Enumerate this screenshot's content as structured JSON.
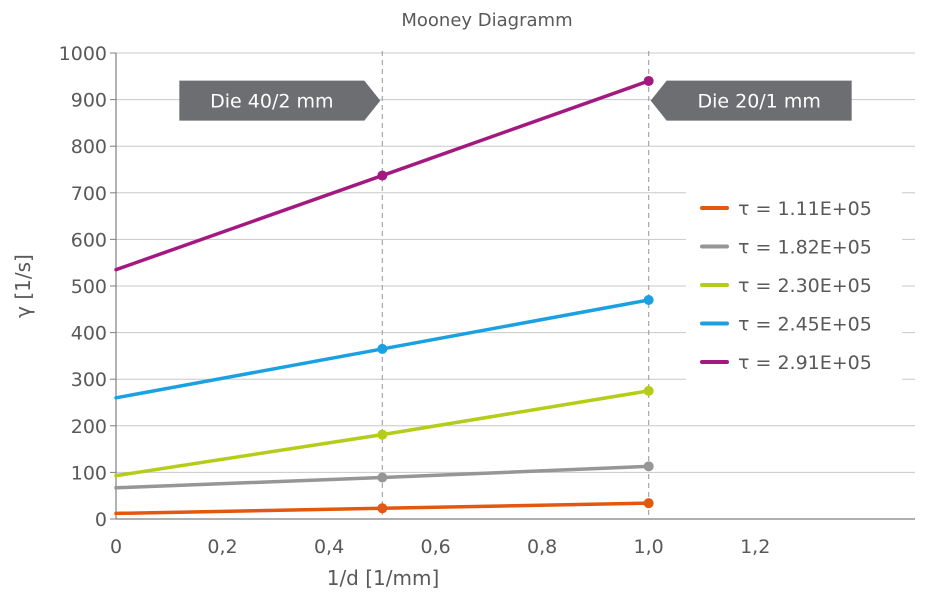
{
  "chart_data": {
    "type": "line",
    "title": "Mooney Diagramm",
    "xlabel": "1/d [1/mm]",
    "ylabel": "γ [1/s]",
    "xlim": [
      0,
      1.5
    ],
    "ylim": [
      0,
      1000
    ],
    "x_ticks": [
      "0",
      "0,2",
      "0,4",
      "0,6",
      "0,8",
      "1,0",
      "1,2"
    ],
    "x_tick_values": [
      0,
      0.2,
      0.4,
      0.6,
      0.8,
      1.0,
      1.2
    ],
    "y_ticks": [
      "0",
      "100",
      "200",
      "300",
      "400",
      "500",
      "600",
      "700",
      "800",
      "900",
      "1000"
    ],
    "y_tick_values": [
      0,
      100,
      200,
      300,
      400,
      500,
      600,
      700,
      800,
      900,
      1000
    ],
    "grid": "horizontal",
    "legend_position": "right",
    "series": [
      {
        "name": "τ = 1.11E+05",
        "color": "#e4570f",
        "x": [
          0,
          0.5,
          1.0
        ],
        "y": [
          12,
          23,
          34
        ]
      },
      {
        "name": "τ = 1.82E+05",
        "color": "#969696",
        "x": [
          0,
          0.5,
          1.0
        ],
        "y": [
          67,
          89,
          113
        ]
      },
      {
        "name": "τ = 2.30E+05",
        "color": "#b5cc18",
        "x": [
          0,
          0.5,
          1.0
        ],
        "y": [
          93,
          181,
          275
        ]
      },
      {
        "name": "τ = 2.45E+05",
        "color": "#1ba1e2",
        "x": [
          0,
          0.5,
          1.0
        ],
        "y": [
          260,
          365,
          470
        ]
      },
      {
        "name": "τ = 2.91E+05",
        "color": "#a3197f",
        "x": [
          0,
          0.5,
          1.0
        ],
        "y": [
          535,
          737,
          940
        ]
      }
    ],
    "markers": [
      {
        "series": 0,
        "x": [
          0.5,
          1.0
        ]
      },
      {
        "series": 1,
        "x": [
          0.5,
          1.0
        ]
      },
      {
        "series": 2,
        "x": [
          0.5,
          1.0
        ]
      },
      {
        "series": 3,
        "x": [
          0.5,
          1.0
        ]
      },
      {
        "series": 4,
        "x": [
          0.5,
          1.0
        ]
      }
    ],
    "vlines": [
      0.5,
      1.0
    ],
    "annotations": [
      {
        "text": "Die 40/2 mm",
        "x": 0.5,
        "y": 900,
        "pointer": "right"
      },
      {
        "text": "Die 20/1 mm",
        "x": 1.0,
        "y": 900,
        "pointer": "left"
      }
    ],
    "colors": {
      "callout": "#6d6e71",
      "grid": "#c8c8c8",
      "axis": "#7f7f7f",
      "vline": "#a6a6a6"
    }
  }
}
